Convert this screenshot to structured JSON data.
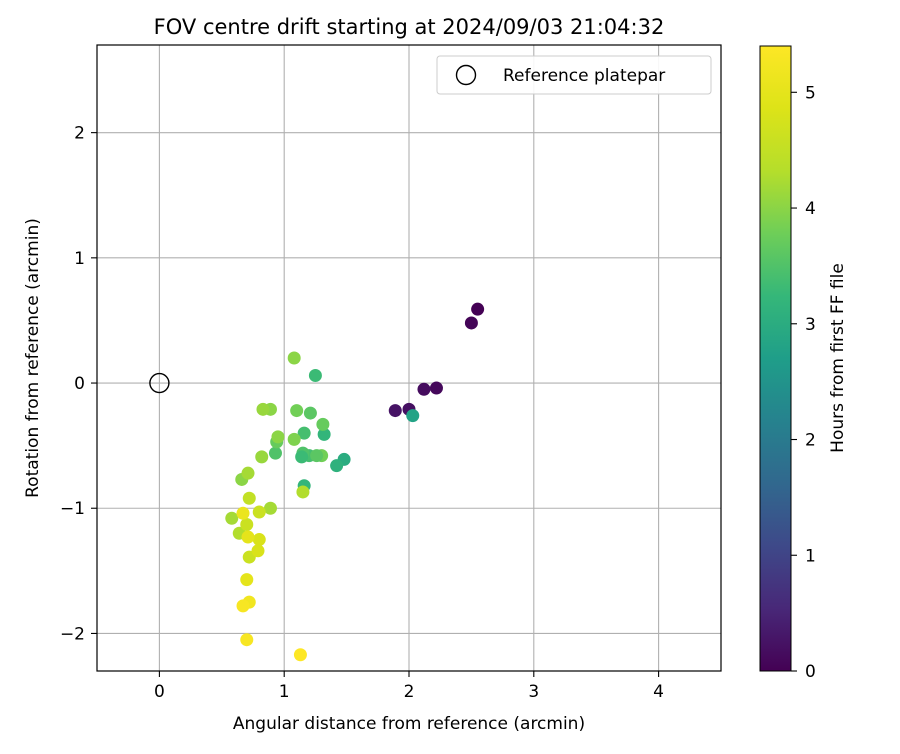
{
  "chart_data": {
    "type": "scatter",
    "title": "FOV centre drift starting at 2024/09/03 21:04:32",
    "xlabel": "Angular distance from reference (arcmin)",
    "ylabel": "Rotation from reference (arcmin)",
    "xlim": [
      -0.5,
      4.5
    ],
    "ylim": [
      -2.3,
      2.7
    ],
    "xticks": [
      0,
      1,
      2,
      3,
      4
    ],
    "xtick_labels": [
      "0",
      "1",
      "2",
      "3",
      "4"
    ],
    "yticks": [
      -2,
      -1,
      0,
      1,
      2
    ],
    "ytick_labels": [
      "−2",
      "−1",
      "0",
      "1",
      "2"
    ],
    "grid": true,
    "legend": {
      "placement": "top-right",
      "entries": [
        "Reference platepar"
      ]
    },
    "reference_point": {
      "x": 0,
      "y": 0,
      "name": "Reference platepar"
    },
    "colorbar": {
      "label": "Hours from first FF file",
      "min": 0,
      "max": 5.4,
      "ticks": [
        0,
        1,
        2,
        3,
        4,
        5
      ],
      "tick_labels": [
        "0",
        "1",
        "2",
        "3",
        "4",
        "5"
      ],
      "colormap": "viridis"
    },
    "points": [
      {
        "x": 2.55,
        "y": 0.59,
        "c": 0.0
      },
      {
        "x": 2.5,
        "y": 0.48,
        "c": 0.05
      },
      {
        "x": 2.22,
        "y": -0.04,
        "c": 0.1
      },
      {
        "x": 2.12,
        "y": -0.05,
        "c": 0.15
      },
      {
        "x": 2.0,
        "y": -0.21,
        "c": 0.2
      },
      {
        "x": 1.89,
        "y": -0.22,
        "c": 0.25
      },
      {
        "x": 2.03,
        "y": -0.26,
        "c": 2.8
      },
      {
        "x": 1.48,
        "y": -0.61,
        "c": 3.0
      },
      {
        "x": 1.42,
        "y": -0.66,
        "c": 3.1
      },
      {
        "x": 1.32,
        "y": -0.41,
        "c": 3.2
      },
      {
        "x": 1.25,
        "y": 0.06,
        "c": 3.3
      },
      {
        "x": 1.2,
        "y": -0.58,
        "c": 3.4
      },
      {
        "x": 1.16,
        "y": -0.4,
        "c": 3.4
      },
      {
        "x": 1.15,
        "y": -0.56,
        "c": 3.5
      },
      {
        "x": 1.14,
        "y": -0.59,
        "c": 3.3
      },
      {
        "x": 1.16,
        "y": -0.82,
        "c": 3.2
      },
      {
        "x": 1.21,
        "y": -0.24,
        "c": 3.6
      },
      {
        "x": 1.31,
        "y": -0.33,
        "c": 3.7
      },
      {
        "x": 1.3,
        "y": -0.58,
        "c": 3.8
      },
      {
        "x": 1.26,
        "y": -0.58,
        "c": 3.6
      },
      {
        "x": 1.1,
        "y": -0.22,
        "c": 3.8
      },
      {
        "x": 1.08,
        "y": -0.45,
        "c": 3.9
      },
      {
        "x": 1.08,
        "y": 0.2,
        "c": 4.0
      },
      {
        "x": 0.93,
        "y": -0.56,
        "c": 3.5
      },
      {
        "x": 0.94,
        "y": -0.47,
        "c": 3.7
      },
      {
        "x": 0.95,
        "y": -0.43,
        "c": 4.0
      },
      {
        "x": 0.89,
        "y": -0.21,
        "c": 4.0
      },
      {
        "x": 0.83,
        "y": -0.21,
        "c": 4.1
      },
      {
        "x": 0.82,
        "y": -0.59,
        "c": 4.1
      },
      {
        "x": 0.66,
        "y": -0.77,
        "c": 4.0
      },
      {
        "x": 0.71,
        "y": -0.72,
        "c": 4.2
      },
      {
        "x": 0.89,
        "y": -1.0,
        "c": 4.2
      },
      {
        "x": 1.15,
        "y": -0.87,
        "c": 4.3
      },
      {
        "x": 0.58,
        "y": -1.08,
        "c": 4.2
      },
      {
        "x": 0.64,
        "y": -1.2,
        "c": 4.3
      },
      {
        "x": 0.72,
        "y": -0.92,
        "c": 4.5
      },
      {
        "x": 0.8,
        "y": -1.03,
        "c": 4.6
      },
      {
        "x": 0.7,
        "y": -1.13,
        "c": 4.6
      },
      {
        "x": 0.72,
        "y": -1.39,
        "c": 4.6
      },
      {
        "x": 0.8,
        "y": -1.25,
        "c": 4.8
      },
      {
        "x": 0.79,
        "y": -1.34,
        "c": 4.8
      },
      {
        "x": 0.71,
        "y": -1.23,
        "c": 5.0
      },
      {
        "x": 0.67,
        "y": -1.04,
        "c": 5.1
      },
      {
        "x": 0.7,
        "y": -1.57,
        "c": 5.0
      },
      {
        "x": 0.72,
        "y": -1.75,
        "c": 5.2
      },
      {
        "x": 0.67,
        "y": -1.78,
        "c": 5.3
      },
      {
        "x": 0.7,
        "y": -2.05,
        "c": 5.3
      },
      {
        "x": 1.13,
        "y": -2.17,
        "c": 5.4
      }
    ]
  }
}
